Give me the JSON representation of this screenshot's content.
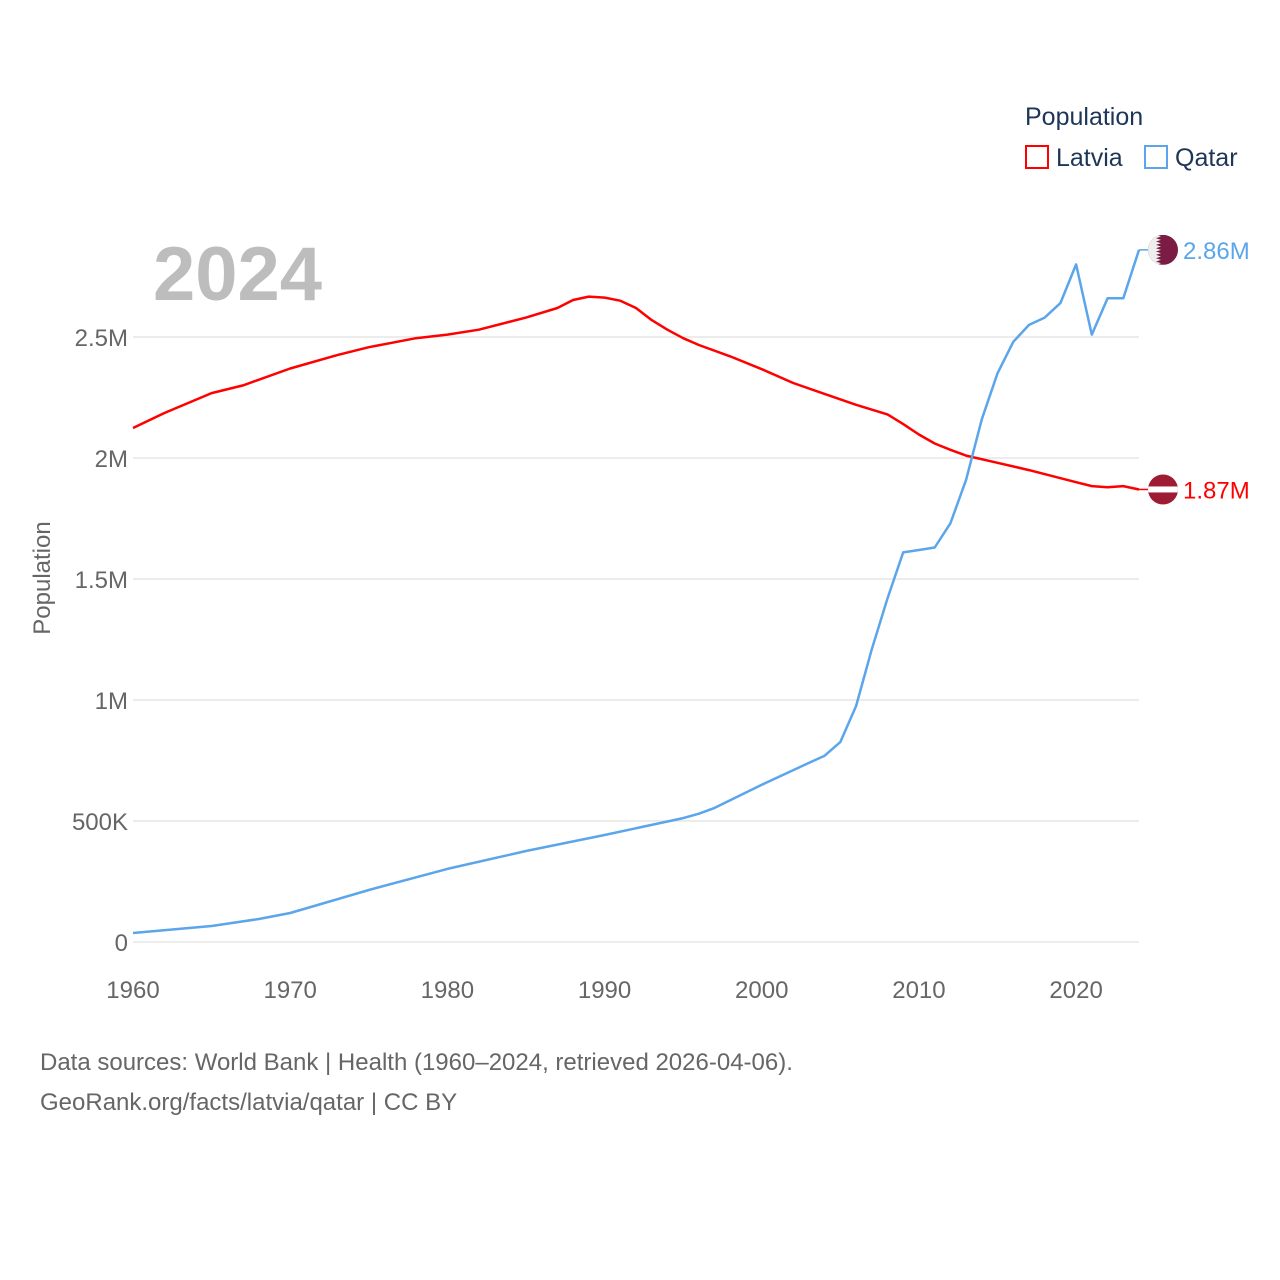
{
  "chart_data": {
    "type": "line",
    "title": "",
    "year_label": "2024",
    "xlabel": "",
    "ylabel": "Population",
    "xlim": [
      1960,
      2024
    ],
    "ylim": [
      0,
      2900000
    ],
    "x_ticks": [
      1960,
      1970,
      1980,
      1990,
      2000,
      2010,
      2020
    ],
    "y_ticks": [
      0,
      500000,
      1000000,
      1500000,
      2000000,
      2500000
    ],
    "y_tick_labels": [
      "0",
      "500K",
      "1M",
      "1.5M",
      "2M",
      "2.5M"
    ],
    "grid": true,
    "legend": {
      "title": "Population",
      "position": "top-right"
    },
    "series": [
      {
        "name": "Latvia",
        "color": "#ff0000",
        "end_label": "1.87M",
        "flag": "latvia-flag",
        "points": [
          [
            1960,
            2124000
          ],
          [
            1962,
            2186000
          ],
          [
            1965,
            2268000
          ],
          [
            1967,
            2300000
          ],
          [
            1970,
            2370000
          ],
          [
            1973,
            2425000
          ],
          [
            1975,
            2458000
          ],
          [
            1978,
            2495000
          ],
          [
            1980,
            2510000
          ],
          [
            1982,
            2530000
          ],
          [
            1985,
            2580000
          ],
          [
            1987,
            2620000
          ],
          [
            1988,
            2653000
          ],
          [
            1989,
            2667000
          ],
          [
            1990,
            2663000
          ],
          [
            1991,
            2650000
          ],
          [
            1992,
            2620000
          ],
          [
            1993,
            2570000
          ],
          [
            1994,
            2530000
          ],
          [
            1995,
            2495000
          ],
          [
            1996,
            2467000
          ],
          [
            1998,
            2420000
          ],
          [
            2000,
            2367000
          ],
          [
            2002,
            2310000
          ],
          [
            2004,
            2265000
          ],
          [
            2006,
            2220000
          ],
          [
            2008,
            2180000
          ],
          [
            2009,
            2140000
          ],
          [
            2010,
            2097000
          ],
          [
            2011,
            2060000
          ],
          [
            2012,
            2034000
          ],
          [
            2013,
            2010000
          ],
          [
            2015,
            1980000
          ],
          [
            2017,
            1950000
          ],
          [
            2020,
            1900000
          ],
          [
            2021,
            1884000
          ],
          [
            2022,
            1879000
          ],
          [
            2023,
            1884000
          ],
          [
            2024,
            1870000
          ]
        ]
      },
      {
        "name": "Qatar",
        "color": "#5ba5eb",
        "end_label": "2.86M",
        "flag": "qatar-flag",
        "points": [
          [
            1960,
            37000
          ],
          [
            1965,
            66000
          ],
          [
            1968,
            95000
          ],
          [
            1970,
            120000
          ],
          [
            1975,
            215000
          ],
          [
            1980,
            302000
          ],
          [
            1985,
            376000
          ],
          [
            1990,
            442000
          ],
          [
            1995,
            512000
          ],
          [
            1996,
            530000
          ],
          [
            1997,
            554000
          ],
          [
            2000,
            650000
          ],
          [
            2003,
            740000
          ],
          [
            2004,
            770000
          ],
          [
            2005,
            826000
          ],
          [
            2006,
            975000
          ],
          [
            2007,
            1210000
          ],
          [
            2008,
            1420000
          ],
          [
            2009,
            1610000
          ],
          [
            2010,
            1620000
          ],
          [
            2011,
            1630000
          ],
          [
            2012,
            1730000
          ],
          [
            2013,
            1910000
          ],
          [
            2014,
            2160000
          ],
          [
            2015,
            2350000
          ],
          [
            2016,
            2480000
          ],
          [
            2017,
            2550000
          ],
          [
            2018,
            2580000
          ],
          [
            2019,
            2640000
          ],
          [
            2020,
            2800000
          ],
          [
            2021,
            2510000
          ],
          [
            2022,
            2660000
          ],
          [
            2023,
            2660000
          ],
          [
            2024,
            2860000
          ]
        ]
      }
    ],
    "footer": {
      "line1": "Data sources: World Bank | Health (1960–2024, retrieved 2026-04-06).",
      "line2": "GeoRank.org/facts/latvia/qatar | CC BY"
    }
  }
}
